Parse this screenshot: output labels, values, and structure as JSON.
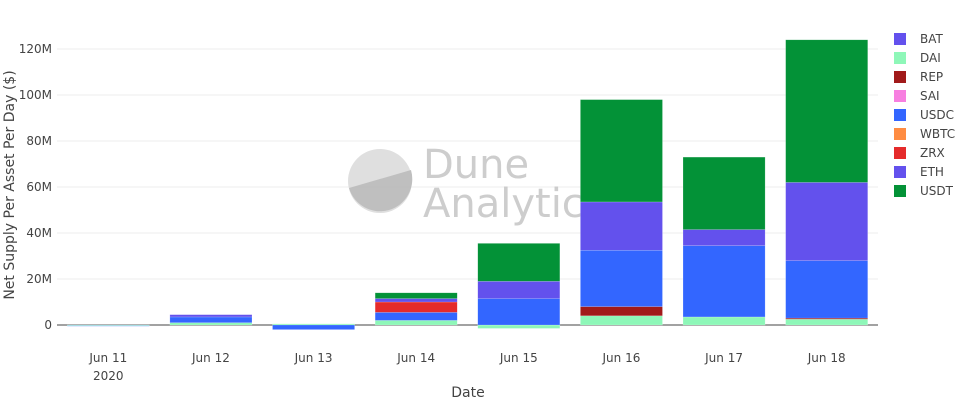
{
  "chart_data": {
    "type": "bar",
    "stacked": true,
    "xlabel": "Date",
    "ylabel": "Net Supply Per Asset Per Day ($)",
    "categories": [
      "Jun 11",
      "Jun 12",
      "Jun 13",
      "Jun 14",
      "Jun 15",
      "Jun 16",
      "Jun 17",
      "Jun 18"
    ],
    "category_sublabels": [
      "2020",
      "",
      "",
      "",
      "",
      "",
      "",
      ""
    ],
    "y_ticks": [
      "0",
      "20M",
      "40M",
      "60M",
      "80M",
      "100M",
      "120M"
    ],
    "ylim": [
      -2000000,
      126000000
    ],
    "grid": true,
    "legend_position": "right",
    "series": [
      {
        "name": "DAI",
        "color": "#8ef7b8",
        "values": [
          -300000,
          1000000,
          500000,
          2000000,
          -1500000,
          4000000,
          3500000,
          2500000
        ]
      },
      {
        "name": "REP",
        "color": "#a11a1a",
        "values": [
          0,
          0,
          0,
          0,
          0,
          4000000,
          0,
          500000
        ]
      },
      {
        "name": "BAT",
        "color": "#6351ed",
        "values": [
          0,
          0,
          0,
          0,
          0,
          0,
          0,
          0
        ]
      },
      {
        "name": "SAI",
        "color": "#f77fe0",
        "values": [
          0,
          0,
          0,
          0,
          0,
          0,
          0,
          0
        ]
      },
      {
        "name": "USDC",
        "color": "#3366ff",
        "values": [
          -200000,
          2500000,
          -2000000,
          3500000,
          11500000,
          24500000,
          31000000,
          25000000
        ]
      },
      {
        "name": "WBTC",
        "color": "#ff8c42",
        "values": [
          0,
          0,
          0,
          0,
          0,
          0,
          0,
          0
        ]
      },
      {
        "name": "ZRX",
        "color": "#e52b2b",
        "values": [
          0,
          0,
          0,
          4500000,
          0,
          0,
          0,
          0
        ]
      },
      {
        "name": "ETH",
        "color": "#6351ed",
        "values": [
          0,
          1000000,
          0,
          1500000,
          7500000,
          21000000,
          7000000,
          34000000
        ]
      },
      {
        "name": "USDT",
        "color": "#039237",
        "values": [
          0,
          0,
          0,
          2500000,
          16500000,
          44500000,
          31500000,
          62000000
        ]
      }
    ],
    "legend": [
      {
        "name": "BAT",
        "color": "#6351ed"
      },
      {
        "name": "DAI",
        "color": "#8ef7b8"
      },
      {
        "name": "REP",
        "color": "#a11a1a"
      },
      {
        "name": "SAI",
        "color": "#f77fe0"
      },
      {
        "name": "USDC",
        "color": "#3366ff"
      },
      {
        "name": "WBTC",
        "color": "#ff8c42"
      },
      {
        "name": "ZRX",
        "color": "#e52b2b"
      },
      {
        "name": "ETH",
        "color": "#6351ed"
      },
      {
        "name": "USDT",
        "color": "#039237"
      }
    ]
  },
  "watermark": {
    "line1": "Dune",
    "line2": "Analytics"
  }
}
